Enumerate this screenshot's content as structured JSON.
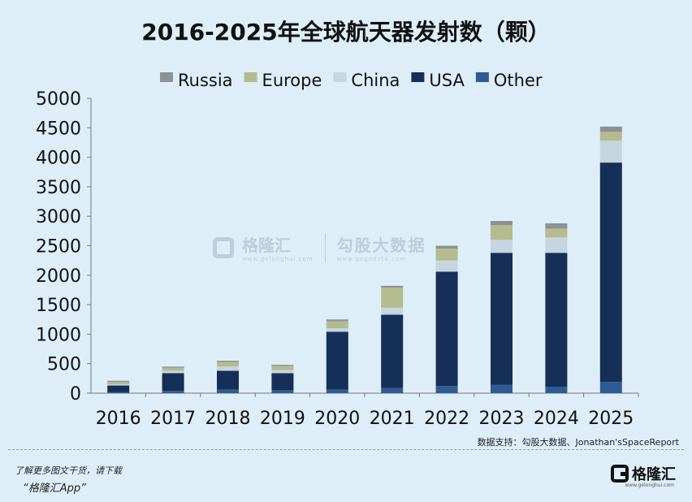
{
  "title": "2016-2025年全球航天器发射数（颗）",
  "source": "数据支持：勾股大数据、Jonathan'sSpaceReport",
  "footer": {
    "line1": "了解更多图文干货，请下载",
    "line2": "“格隆汇App”"
  },
  "logo": {
    "name": "格隆汇",
    "url": "www.gelonghui.com"
  },
  "watermark": {
    "brand": "格隆汇",
    "brand_url": "www.gelonghui.com",
    "partner": "勾股大数据",
    "partner_url": "www.gogudata.com"
  },
  "colors": {
    "background": "#ddeef8",
    "Russia": "#8c9196",
    "Europe": "#b4bb8e",
    "China": "#c6d6e0",
    "USA": "#152f56",
    "Other": "#2f5b94"
  },
  "chart_data": {
    "type": "bar",
    "stacked": true,
    "title": "2016-2025年全球航天器发射数（颗）",
    "categories": [
      "2016",
      "2017",
      "2018",
      "2019",
      "2020",
      "2021",
      "2022",
      "2023",
      "2024",
      "2025"
    ],
    "series": [
      {
        "name": "Other",
        "values": [
          20,
          40,
          60,
          50,
          60,
          90,
          120,
          140,
          110,
          190
        ]
      },
      {
        "name": "USA",
        "values": [
          110,
          300,
          320,
          290,
          980,
          1240,
          1940,
          2240,
          2270,
          3720
        ]
      },
      {
        "name": "China",
        "values": [
          20,
          40,
          70,
          50,
          60,
          120,
          190,
          220,
          260,
          370
        ]
      },
      {
        "name": "Europe",
        "values": [
          40,
          50,
          80,
          70,
          120,
          340,
          200,
          250,
          150,
          150
        ]
      },
      {
        "name": "Russia",
        "values": [
          20,
          20,
          20,
          20,
          30,
          30,
          50,
          70,
          90,
          90
        ]
      }
    ],
    "legend_order": [
      "Russia",
      "Europe",
      "China",
      "USA",
      "Other"
    ],
    "legend_position": "top",
    "ylim": [
      0,
      5000
    ],
    "yticks": [
      "0",
      "500",
      "1000",
      "1500",
      "2000",
      "2500",
      "3000",
      "3500",
      "4000",
      "4500",
      "5000"
    ],
    "grid": false
  }
}
